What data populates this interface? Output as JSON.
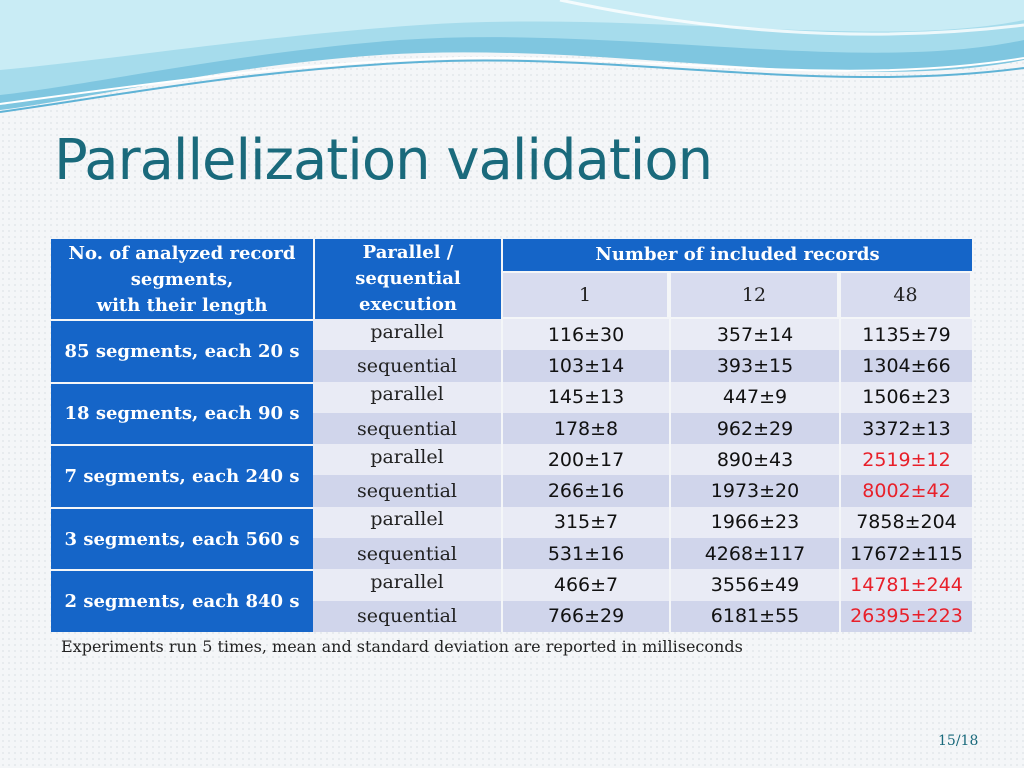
{
  "title": "Parallelization validation",
  "table": {
    "col1_header": [
      "No. of analyzed record",
      "segments,",
      "with their length"
    ],
    "col2_header": [
      "Parallel /",
      "sequential",
      "execution"
    ],
    "group_header": "Number of included records",
    "record_counts": [
      "1",
      "12",
      "48"
    ],
    "groups": [
      {
        "label": "85 segments, each 20 s",
        "rows": [
          {
            "exec": "parallel",
            "values": [
              "116±30",
              "357±14",
              "1135±79"
            ]
          },
          {
            "exec": "sequential",
            "values": [
              "103±14",
              "393±15",
              "1304±66"
            ]
          }
        ]
      },
      {
        "label": "18 segments, each 90 s",
        "rows": [
          {
            "exec": "parallel",
            "values": [
              "145±13",
              "447±9",
              "1506±23"
            ]
          },
          {
            "exec": "sequential",
            "values": [
              "178±8",
              "962±29",
              "3372±13"
            ]
          }
        ]
      },
      {
        "label": "7 segments, each 240 s",
        "rows": [
          {
            "exec": "parallel",
            "values": [
              "200±17",
              "890±43",
              "2519±12"
            ]
          },
          {
            "exec": "sequential",
            "values": [
              "266±16",
              "1973±20",
              "8002±42"
            ]
          }
        ]
      },
      {
        "label": "3 segments, each 560 s",
        "rows": [
          {
            "exec": "parallel",
            "values": [
              "315±7",
              "1966±23",
              "7858±204"
            ]
          },
          {
            "exec": "sequential",
            "values": [
              "531±16",
              "4268±117",
              "17672±115"
            ]
          }
        ]
      },
      {
        "label": "2 segments, each 840 s",
        "rows": [
          {
            "exec": "parallel",
            "values": [
              "466±7",
              "3556±49",
              "14781±244"
            ]
          },
          {
            "exec": "sequential",
            "values": [
              "766±29",
              "6181±55",
              "26395±223"
            ]
          }
        ]
      }
    ],
    "highlight_color": "#e8202a",
    "header_color": "#1565c8"
  },
  "note": "Experiments run 5 times, mean and standard deviation are reported in milliseconds",
  "page_number": "15/18"
}
